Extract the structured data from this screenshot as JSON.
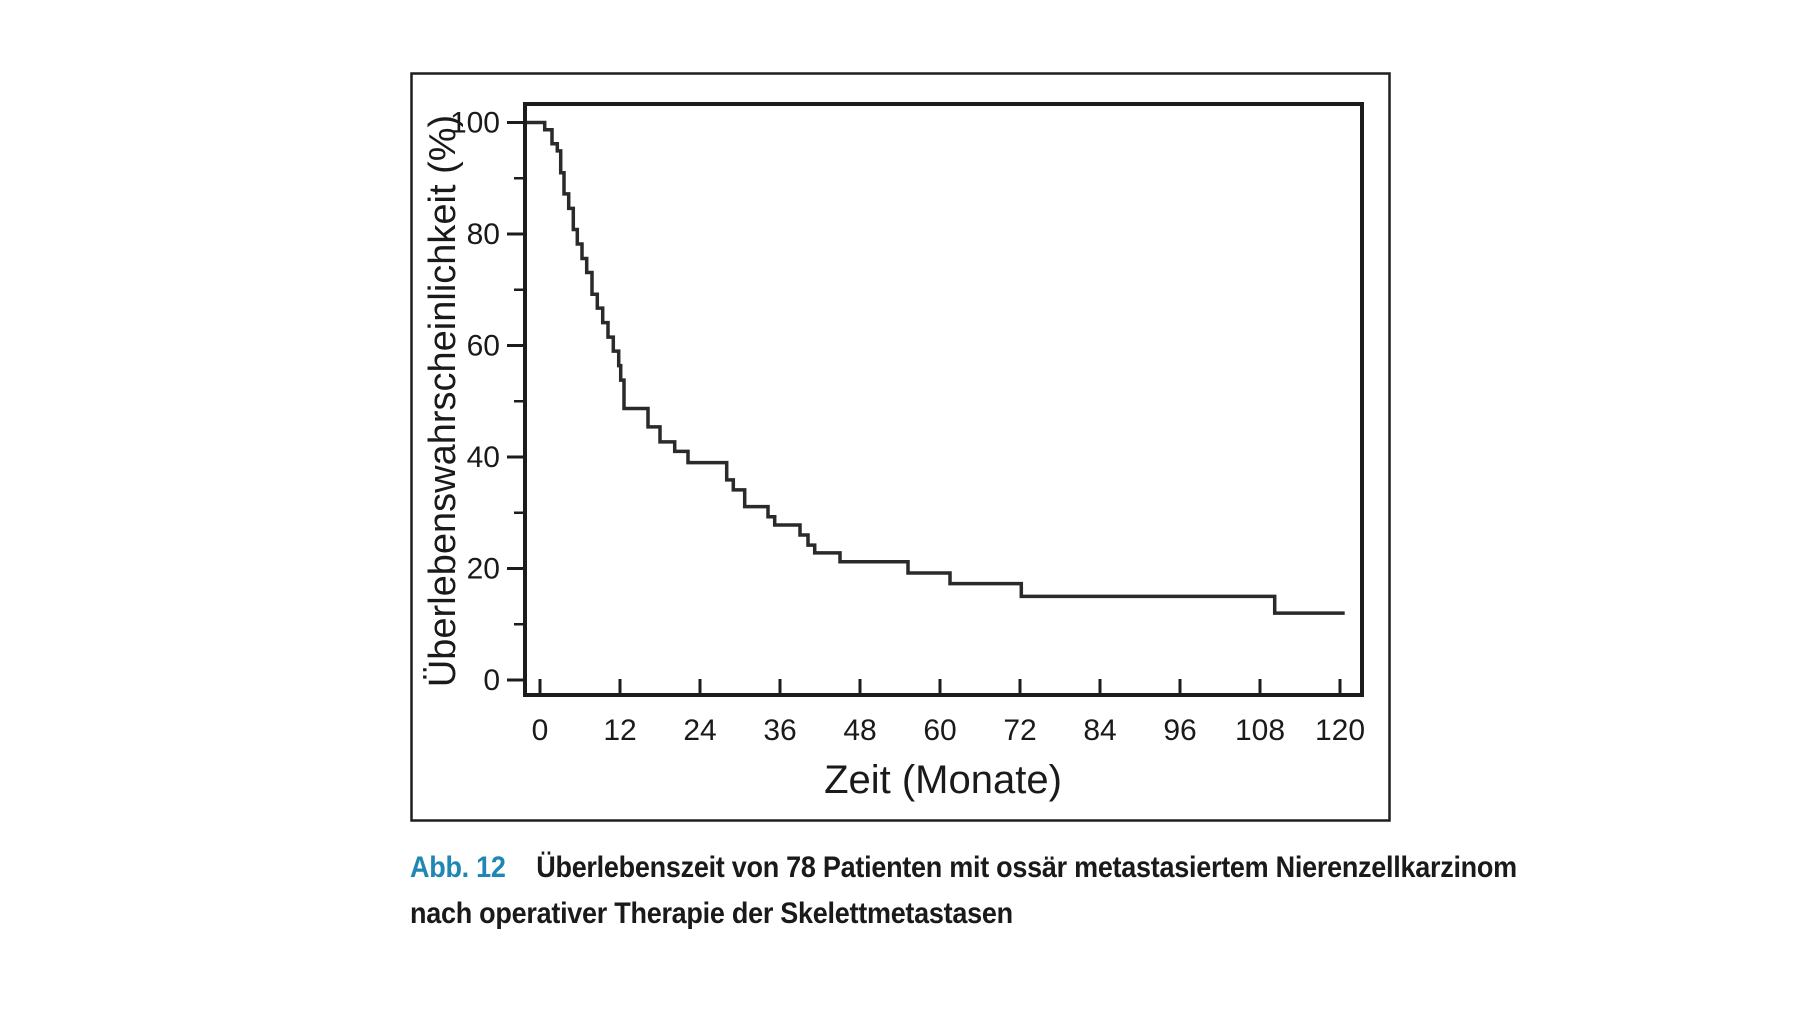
{
  "figure": {
    "caption": {
      "label": "Abb. 12",
      "line1": "Überlebenszeit von 78 Patienten mit ossär metastasiertem Nierenzellkarzinom",
      "line2": "nach operativer Therapie der Skelettmetastasen",
      "label_color": "#1e87b4"
    }
  },
  "chart_data": {
    "type": "line",
    "subtype": "kaplan-meier-step-function",
    "title": "",
    "xlabel": "Zeit (Monate)",
    "ylabel": "Überlebenswahrscheinlichkeit (%)",
    "xlim": [
      0,
      124
    ],
    "ylim": [
      0,
      106
    ],
    "x_ticks": [
      0,
      12,
      24,
      36,
      48,
      60,
      72,
      84,
      96,
      108,
      120
    ],
    "y_ticks": [
      0,
      20,
      40,
      60,
      80,
      100
    ],
    "y_minor_ticks": [
      10,
      30,
      50,
      70,
      90
    ],
    "grid": false,
    "legend": "none",
    "n_patients": 78,
    "colors": {
      "curve": "#2a2a2a",
      "axis": "#1c1c1c",
      "caption_accent": "#1e87b4"
    },
    "series": [
      {
        "name": "Überlebenswahrscheinlichkeit (%)",
        "steps": [
          [
            0,
            100
          ],
          [
            0.7,
            98.7
          ],
          [
            1.8,
            96.2
          ],
          [
            2.6,
            94.9
          ],
          [
            3.1,
            91.0
          ],
          [
            3.6,
            87.2
          ],
          [
            4.3,
            84.6
          ],
          [
            5.0,
            80.8
          ],
          [
            5.6,
            78.2
          ],
          [
            6.3,
            75.6
          ],
          [
            7.0,
            73.1
          ],
          [
            7.8,
            69.2
          ],
          [
            8.6,
            66.7
          ],
          [
            9.4,
            64.1
          ],
          [
            10.2,
            61.5
          ],
          [
            11.0,
            59.0
          ],
          [
            11.8,
            56.4
          ],
          [
            12.1,
            53.8
          ],
          [
            12.6,
            48.7
          ],
          [
            16.2,
            45.4
          ],
          [
            18.0,
            42.7
          ],
          [
            20.2,
            41.0
          ],
          [
            22.2,
            39.0
          ],
          [
            28.0,
            35.9
          ],
          [
            29.0,
            34.1
          ],
          [
            30.7,
            31.1
          ],
          [
            34.2,
            29.3
          ],
          [
            35.2,
            27.8
          ],
          [
            39.0,
            26.0
          ],
          [
            40.2,
            24.2
          ],
          [
            41.2,
            22.8
          ],
          [
            45.0,
            21.2
          ],
          [
            55.2,
            19.2
          ],
          [
            61.5,
            17.3
          ],
          [
            72.2,
            15.0
          ],
          [
            110.2,
            12.0
          ]
        ],
        "end_x": 120.7
      }
    ]
  }
}
